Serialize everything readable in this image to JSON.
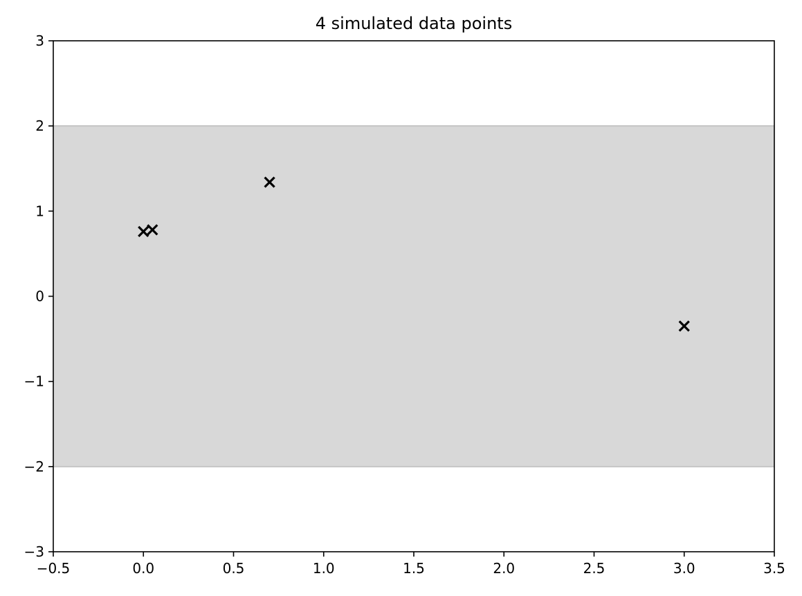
{
  "chart_data": {
    "type": "scatter",
    "title": "4 simulated data points",
    "xlabel": "",
    "ylabel": "",
    "xlim": [
      -0.5,
      3.5
    ],
    "ylim": [
      -3,
      3
    ],
    "x_ticks": [
      -0.5,
      0.0,
      0.5,
      1.0,
      1.5,
      2.0,
      2.5,
      3.0,
      3.5
    ],
    "x_tick_labels": [
      "−0.5",
      "0.0",
      "0.5",
      "1.0",
      "1.5",
      "2.0",
      "2.5",
      "3.0",
      "3.5"
    ],
    "y_ticks": [
      -3,
      -2,
      -1,
      0,
      1,
      2,
      3
    ],
    "y_tick_labels": [
      "−3",
      "−2",
      "−1",
      "0",
      "1",
      "2",
      "3"
    ],
    "grid": false,
    "band": {
      "y_min": -2,
      "y_max": 2,
      "color": "#d8d8d8",
      "edge_color": "#c4c4c4"
    },
    "series": [
      {
        "marker": "x",
        "color": "#000000",
        "points": [
          {
            "x": 0.0,
            "y": 0.76
          },
          {
            "x": 0.05,
            "y": 0.78
          },
          {
            "x": 0.7,
            "y": 1.34
          },
          {
            "x": 3.0,
            "y": -0.35
          }
        ]
      }
    ]
  }
}
